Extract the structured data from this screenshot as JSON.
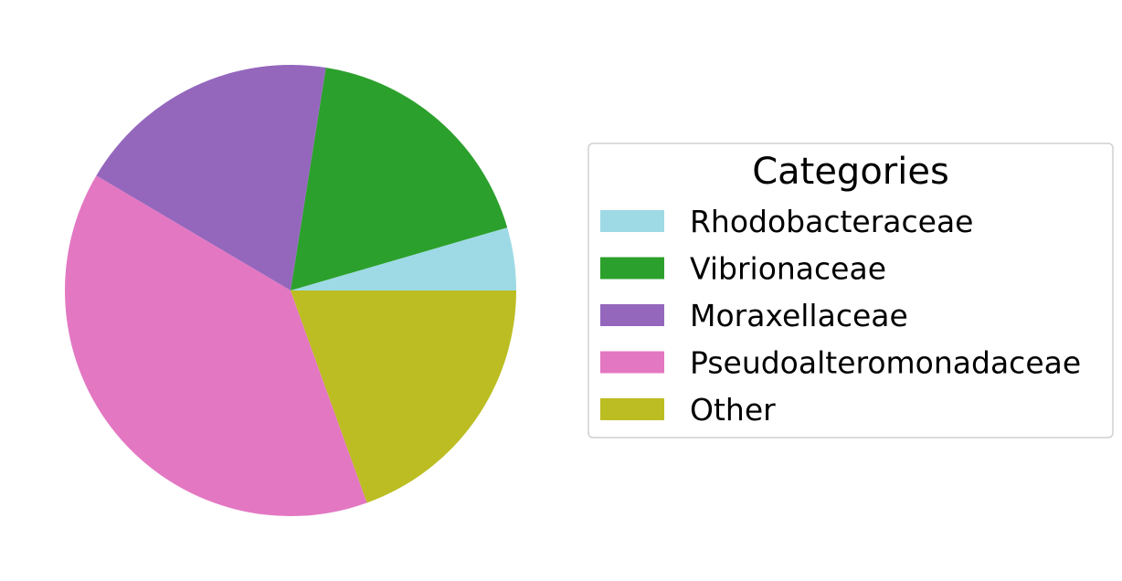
{
  "chart_data": {
    "type": "pie",
    "labels": [
      "Rhodobacteraceae",
      "Vibrionaceae",
      "Moraxellaceae",
      "Pseudoalteromonadaceae",
      "Other"
    ],
    "values": [
      4.5,
      18.0,
      19.0,
      39.0,
      19.5
    ],
    "colors": [
      "#9edae5",
      "#2ca02c",
      "#9467bd",
      "#e377c2",
      "#bcbd22"
    ],
    "start_angle_deg": 0,
    "direction": "counterclockwise",
    "legend": {
      "title": "Categories",
      "placement": "right"
    }
  }
}
